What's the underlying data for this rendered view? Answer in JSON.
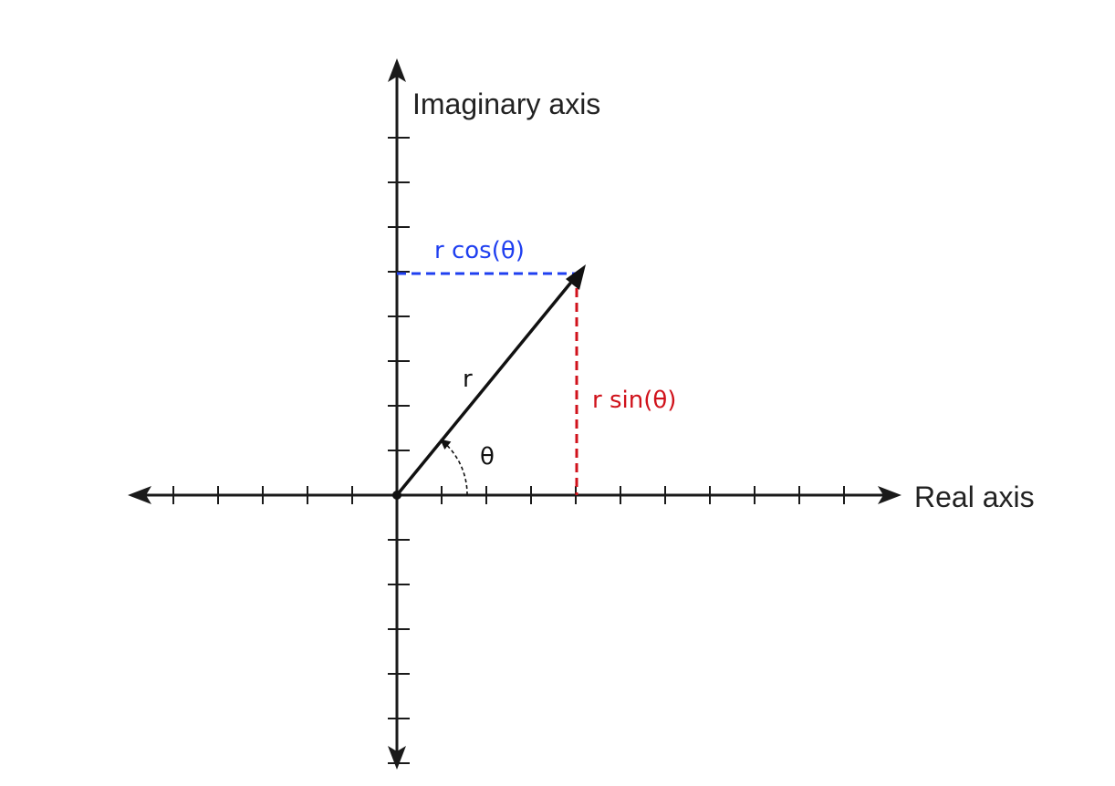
{
  "axes": {
    "real_label": "Real axis",
    "imaginary_label": "Imaginary axis"
  },
  "vector": {
    "magnitude_label": "r",
    "angle_label": "θ",
    "horizontal_component_label": "r cos(θ)",
    "vertical_component_label": "r sin(θ)"
  },
  "colors": {
    "axis": "#1a1a1a",
    "vector": "#111111",
    "horizontal_component": "#1f3ff0",
    "vertical_component": "#d0121b",
    "background": "#ffffff"
  }
}
